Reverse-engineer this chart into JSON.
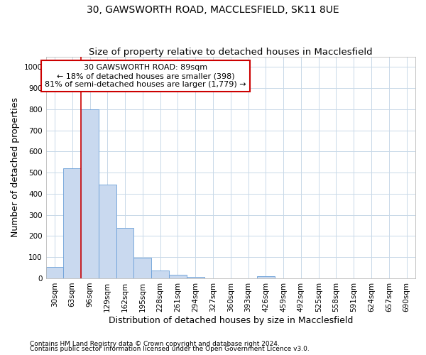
{
  "title": "30, GAWSWORTH ROAD, MACCLESFIELD, SK11 8UE",
  "subtitle": "Size of property relative to detached houses in Macclesfield",
  "xlabel": "Distribution of detached houses by size in Macclesfield",
  "ylabel": "Number of detached properties",
  "bar_labels": [
    "30sqm",
    "63sqm",
    "96sqm",
    "129sqm",
    "162sqm",
    "195sqm",
    "228sqm",
    "261sqm",
    "294sqm",
    "327sqm",
    "360sqm",
    "393sqm",
    "426sqm",
    "459sqm",
    "492sqm",
    "525sqm",
    "558sqm",
    "591sqm",
    "624sqm",
    "657sqm",
    "690sqm"
  ],
  "bar_values": [
    52,
    520,
    800,
    445,
    238,
    97,
    38,
    18,
    8,
    0,
    0,
    0,
    10,
    0,
    0,
    0,
    0,
    0,
    0,
    0,
    0
  ],
  "bar_color": "#c9d9ef",
  "bar_edge_color": "#6a9fd8",
  "annotation_text": "30 GAWSWORTH ROAD: 89sqm\n← 18% of detached houses are smaller (398)\n81% of semi-detached houses are larger (1,779) →",
  "annotation_box_color": "#ffffff",
  "annotation_box_edge": "#cc0000",
  "vline_color": "#cc0000",
  "vline_x": 2.0,
  "ylim": [
    0,
    1050
  ],
  "yticks": [
    0,
    100,
    200,
    300,
    400,
    500,
    600,
    700,
    800,
    900,
    1000
  ],
  "footnote1": "Contains HM Land Registry data © Crown copyright and database right 2024.",
  "footnote2": "Contains public sector information licensed under the Open Government Licence v3.0.",
  "background_color": "#ffffff",
  "grid_color": "#c8d8e8",
  "title_fontsize": 10,
  "subtitle_fontsize": 9.5,
  "axis_label_fontsize": 9,
  "tick_fontsize": 7.5,
  "footnote_fontsize": 6.5
}
